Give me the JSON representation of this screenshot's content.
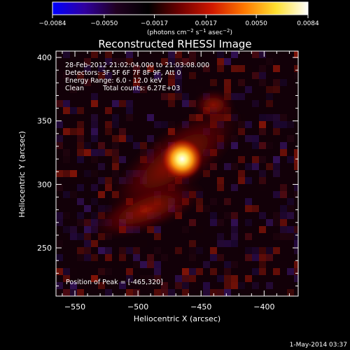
{
  "chart_data": {
    "type": "heatmap",
    "title": "Reconstructed RHESSI Image",
    "xlabel": "Heliocentric X (arcsec)",
    "ylabel": "Heliocentric Y (arcsec)",
    "xlim": [
      -565,
      -373
    ],
    "ylim": [
      212,
      405
    ],
    "xticks": [
      -550,
      -500,
      -450,
      -400
    ],
    "yticks": [
      250,
      300,
      350,
      400
    ],
    "colorbar": {
      "ticks": [
        -0.0084,
        -0.005,
        -0.0017,
        0.0017,
        0.005,
        0.0084
      ],
      "tick_labels": [
        "−0.0084",
        "−0.0050",
        "−0.0017",
        "0.0017",
        "0.0050",
        "0.0084"
      ],
      "label_main": "(photons cm",
      "label_exp1": "−2",
      "label_mid": " s",
      "label_exp2": "−1",
      "label_end": " asec",
      "label_exp3": "−2",
      "label_close": ")",
      "colormap": [
        "#0000ff",
        "#3000a0",
        "#200020",
        "#000000",
        "#700000",
        "#d01800",
        "#ff7800",
        "#ffe030",
        "#ffffff"
      ]
    },
    "peak_position": [
      -465,
      320
    ],
    "annotations": [
      "28-Feb-2012 21:02:04.000 to 21:03:08.000",
      "Detectors: 3F 5F 6F 7F 8F 9F, Att 0",
      "Energy Range: 6.0 - 12.0 keV",
      "Clean",
      "Total counts: 6.27E+03",
      "Position of Peak = [-465,320]"
    ],
    "footer_date": "1-May-2014 03:37"
  }
}
